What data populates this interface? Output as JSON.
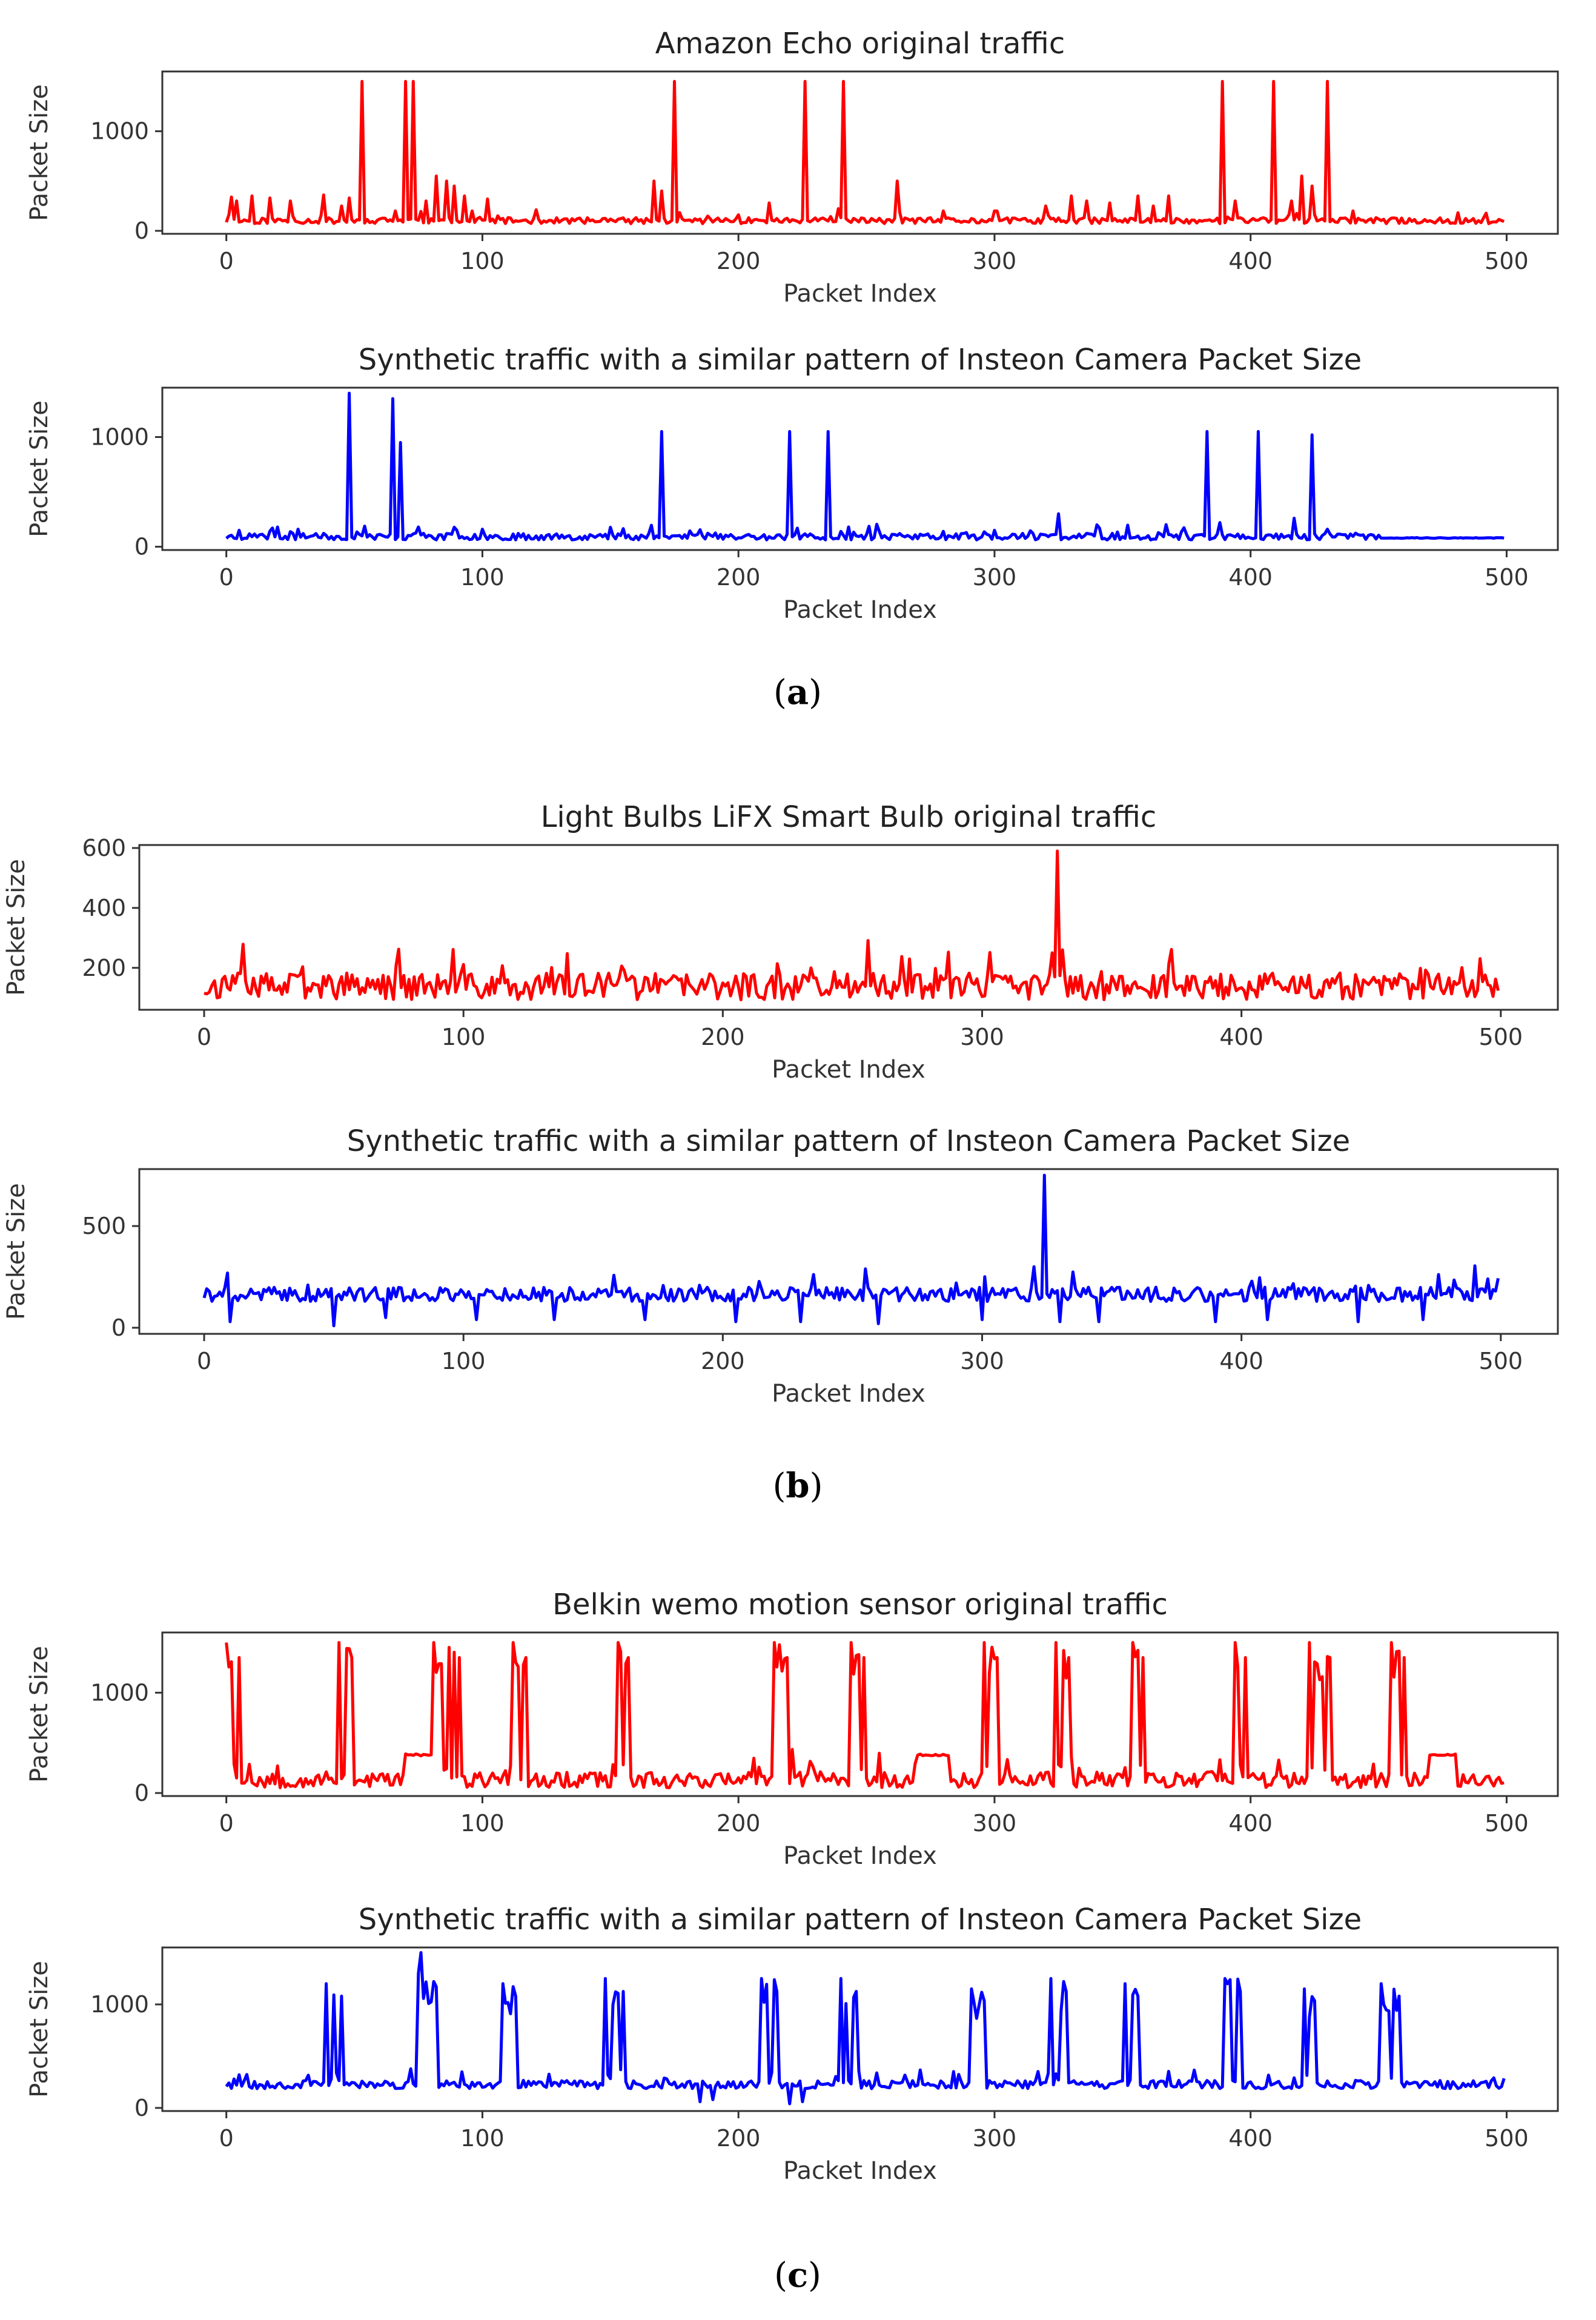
{
  "colors": {
    "original": "#ff0000",
    "synthetic": "#0000ff",
    "axis": "#333333"
  },
  "panels": [
    {
      "caption_letter": "a"
    },
    {
      "caption_letter": "b"
    },
    {
      "caption_letter": "c"
    }
  ],
  "chart_data": [
    {
      "type": "line",
      "title": "Amazon Echo original traffic",
      "xlabel": "Packet Index",
      "ylabel": "Packet Size",
      "xlim": [
        -25,
        520
      ],
      "ylim": [
        -30,
        1600
      ],
      "xticks": [
        0,
        100,
        200,
        300,
        400,
        500
      ],
      "yticks": [
        0,
        1000
      ],
      "color": "#ff0000",
      "series": [
        {
          "name": "Amazon Echo original traffic",
          "baseline": 90,
          "noise": 60,
          "noise_range": [
            0,
            500
          ],
          "seed": 11,
          "spikes": [
            [
              2,
              340
            ],
            [
              4,
              300
            ],
            [
              10,
              350
            ],
            [
              17,
              330
            ],
            [
              25,
              300
            ],
            [
              38,
              360
            ],
            [
              45,
              250
            ],
            [
              48,
              330
            ],
            [
              53,
              1500
            ],
            [
              60,
              120
            ],
            [
              66,
              200
            ],
            [
              70,
              1500
            ],
            [
              73,
              1500
            ],
            [
              78,
              300
            ],
            [
              82,
              550
            ],
            [
              86,
              500
            ],
            [
              89,
              450
            ],
            [
              93,
              350
            ],
            [
              96,
              200
            ],
            [
              102,
              320
            ],
            [
              167,
              500
            ],
            [
              170,
              400
            ],
            [
              175,
              1500
            ],
            [
              212,
              280
            ],
            [
              226,
              1500
            ],
            [
              241,
              1500
            ],
            [
              262,
              500
            ],
            [
              280,
              200
            ],
            [
              300,
              200
            ],
            [
              320,
              250
            ],
            [
              330,
              350
            ],
            [
              336,
              300
            ],
            [
              345,
              280
            ],
            [
              356,
              350
            ],
            [
              362,
              250
            ],
            [
              368,
              350
            ],
            [
              389,
              1500
            ],
            [
              394,
              300
            ],
            [
              409,
              1500
            ],
            [
              416,
              300
            ],
            [
              420,
              550
            ],
            [
              424,
              450
            ],
            [
              430,
              1500
            ],
            [
              440,
              200
            ]
          ],
          "x_min": 0,
          "x_max": 499
        }
      ]
    },
    {
      "type": "line",
      "title": "Synthetic traffic with a similar pattern of Insteon Camera Packet Size",
      "xlabel": "Packet Index",
      "ylabel": "Packet Size",
      "xlim": [
        -25,
        520
      ],
      "ylim": [
        -30,
        1450
      ],
      "xticks": [
        0,
        100,
        200,
        300,
        400,
        500
      ],
      "yticks": [
        0,
        1000
      ],
      "color": "#0000ff",
      "series": [
        {
          "name": "Synthetic Insteon Camera",
          "baseline": 80,
          "noise": 60,
          "noise_range": [
            0,
            450
          ],
          "seed": 23,
          "spikes": [
            [
              5,
              150
            ],
            [
              20,
              180
            ],
            [
              35,
              120
            ],
            [
              48,
              1400
            ],
            [
              65,
              1350
            ],
            [
              68,
              950
            ],
            [
              75,
              180
            ],
            [
              90,
              150
            ],
            [
              100,
              160
            ],
            [
              165,
              120
            ],
            [
              170,
              1050
            ],
            [
              210,
              110
            ],
            [
              220,
              1050
            ],
            [
              235,
              1050
            ],
            [
              255,
              140
            ],
            [
              280,
              140
            ],
            [
              300,
              150
            ],
            [
              325,
              300
            ],
            [
              340,
              200
            ],
            [
              383,
              1050
            ],
            [
              388,
              220
            ],
            [
              403,
              1050
            ],
            [
              417,
              260
            ],
            [
              424,
              1020
            ],
            [
              430,
              160
            ]
          ],
          "x_min": 0,
          "x_max": 499
        }
      ]
    },
    {
      "type": "line",
      "title": "Light Bulbs LiFX Smart Bulb original traffic",
      "xlabel": "Packet Index",
      "ylabel": "Packet Size",
      "xlim": [
        -25,
        522
      ],
      "ylim": [
        60,
        610
      ],
      "xticks": [
        0,
        100,
        200,
        300,
        400,
        500
      ],
      "yticks": [
        200,
        400,
        600
      ],
      "color": "#ff0000",
      "series": [
        {
          "name": "LiFX Smart Bulb original traffic",
          "baseline": 120,
          "noise": 90,
          "noise_range": [
            0,
            500
          ],
          "seed": 37,
          "spikes": [
            [
              329,
              590
            ],
            [
              327,
              250
            ],
            [
              331,
              260
            ]
          ],
          "x_min": 0,
          "x_max": 499
        }
      ]
    },
    {
      "type": "line",
      "title": "Synthetic traffic with a similar pattern of Insteon Camera Packet Size",
      "xlabel": "Packet Index",
      "ylabel": "Packet Size",
      "xlim": [
        -25,
        522
      ],
      "ylim": [
        -30,
        780
      ],
      "xticks": [
        0,
        100,
        200,
        300,
        400,
        500
      ],
      "yticks": [
        0,
        500
      ],
      "color": "#0000ff",
      "series": [
        {
          "name": "Synthetic Insteon Camera",
          "baseline": 150,
          "noise": 70,
          "noise_range": [
            0,
            500
          ],
          "seed": 41,
          "dips": [
            [
              10,
              30
            ],
            [
              50,
              10
            ],
            [
              70,
              50
            ],
            [
              105,
              40
            ],
            [
              135,
              40
            ],
            [
              170,
              40
            ],
            [
              205,
              30
            ],
            [
              230,
              30
            ],
            [
              260,
              20
            ],
            [
              300,
              40
            ],
            [
              330,
              30
            ],
            [
              345,
              30
            ],
            [
              390,
              30
            ],
            [
              410,
              40
            ],
            [
              445,
              30
            ],
            [
              470,
              40
            ]
          ],
          "spikes": [
            [
              324,
              750
            ],
            [
              320,
              300
            ],
            [
              290,
              220
            ],
            [
              40,
              210
            ],
            [
              495,
              240
            ]
          ],
          "x_min": 0,
          "x_max": 499
        }
      ]
    },
    {
      "type": "line",
      "title": "Belkin wemo motion sensor original traffic",
      "xlabel": "Packet Index",
      "ylabel": "Packet Size",
      "xlim": [
        -25,
        520
      ],
      "ylim": [
        -30,
        1600
      ],
      "xticks": [
        0,
        100,
        200,
        300,
        400,
        500
      ],
      "yticks": [
        0,
        1000
      ],
      "color": "#ff0000",
      "series": [
        {
          "name": "Belkin wemo motion sensor original traffic",
          "baseline": 100,
          "noise": 160,
          "noise_range": [
            8,
            500
          ],
          "seed": 53,
          "bursts": [
            [
              0,
              5,
              1500
            ],
            [
              44,
              49,
              1500
            ],
            [
              81,
              91,
              1500
            ],
            [
              112,
              117,
              1500
            ],
            [
              153,
              157,
              1500
            ],
            [
              214,
              219,
              1500
            ],
            [
              244,
              249,
              1500
            ],
            [
              296,
              301,
              1500
            ],
            [
              324,
              329,
              1500
            ],
            [
              354,
              358,
              1500
            ],
            [
              394,
              398,
              1500
            ],
            [
              423,
              431,
              1500
            ],
            [
              455,
              460,
              1500
            ]
          ],
          "plateaus": [
            [
              70,
              80,
              380
            ],
            [
              270,
              282,
              380
            ],
            [
              470,
              480,
              380
            ]
          ],
          "x_min": 0,
          "x_max": 499
        }
      ]
    },
    {
      "type": "line",
      "title": "Synthetic traffic with a similar pattern of Insteon Camera Packet Size",
      "xlabel": "Packet Index",
      "ylabel": "Packet Size",
      "xlim": [
        -25,
        520
      ],
      "ylim": [
        -30,
        1550
      ],
      "xticks": [
        0,
        100,
        200,
        300,
        400,
        500
      ],
      "yticks": [
        0,
        1000
      ],
      "color": "#0000ff",
      "series": [
        {
          "name": "Synthetic Insteon Camera",
          "baseline": 210,
          "noise": 80,
          "noise_range": [
            0,
            500
          ],
          "seed": 67,
          "bursts": [
            [
              39,
              45,
              1200
            ],
            [
              75,
              82,
              1300
            ],
            [
              108,
              113,
              1200
            ],
            [
              148,
              155,
              1250
            ],
            [
              209,
              215,
              1250
            ],
            [
              240,
              246,
              1250
            ],
            [
              291,
              296,
              1150
            ],
            [
              322,
              328,
              1250
            ],
            [
              351,
              356,
              1200
            ],
            [
              390,
              396,
              1250
            ],
            [
              421,
              425,
              1150
            ],
            [
              451,
              458,
              1200
            ]
          ],
          "spikes": [
            [
              76,
              1500
            ],
            [
              30,
              260
            ],
            [
              180,
              250
            ],
            [
              185,
              60
            ],
            [
              190,
              80
            ],
            [
              220,
              40
            ],
            [
              225,
              60
            ],
            [
              495,
              290
            ]
          ],
          "x_min": 0,
          "x_max": 499
        }
      ]
    }
  ]
}
